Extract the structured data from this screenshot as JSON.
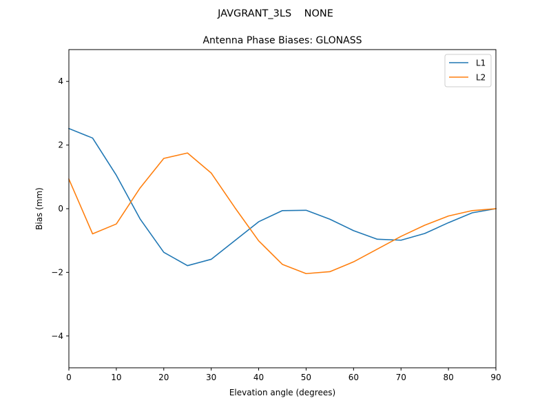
{
  "figure": {
    "suptitle": "JAVGRANT_3LS    NONE"
  },
  "chart_data": {
    "type": "line",
    "title": "Antenna Phase Biases: GLONASS",
    "xlabel": "Elevation angle (degrees)",
    "ylabel": "Bias (mm)",
    "xlim": [
      0,
      90
    ],
    "ylim": [
      -5,
      5
    ],
    "xticks": [
      0,
      10,
      20,
      30,
      40,
      50,
      60,
      70,
      80,
      90
    ],
    "yticks": [
      -4,
      -2,
      0,
      2,
      4
    ],
    "ytick_labels": [
      "−4",
      "−2",
      "0",
      "2",
      "4"
    ],
    "grid": false,
    "legend": "top-right",
    "x": [
      0,
      5,
      10,
      15,
      20,
      25,
      30,
      35,
      40,
      45,
      50,
      55,
      60,
      65,
      70,
      75,
      80,
      85,
      90
    ],
    "series": [
      {
        "name": "L1",
        "color": "#1f77b4",
        "values": [
          2.52,
          2.22,
          1.05,
          -0.32,
          -1.37,
          -1.79,
          -1.59,
          -1.0,
          -0.41,
          -0.06,
          -0.05,
          -0.33,
          -0.69,
          -0.96,
          -0.99,
          -0.78,
          -0.44,
          -0.13,
          0.0
        ]
      },
      {
        "name": "L2",
        "color": "#ff7f0e",
        "values": [
          0.93,
          -0.79,
          -0.48,
          0.65,
          1.58,
          1.75,
          1.12,
          0.03,
          -1.01,
          -1.75,
          -2.04,
          -1.98,
          -1.67,
          -1.27,
          -0.87,
          -0.52,
          -0.23,
          -0.06,
          0.0
        ]
      }
    ]
  }
}
